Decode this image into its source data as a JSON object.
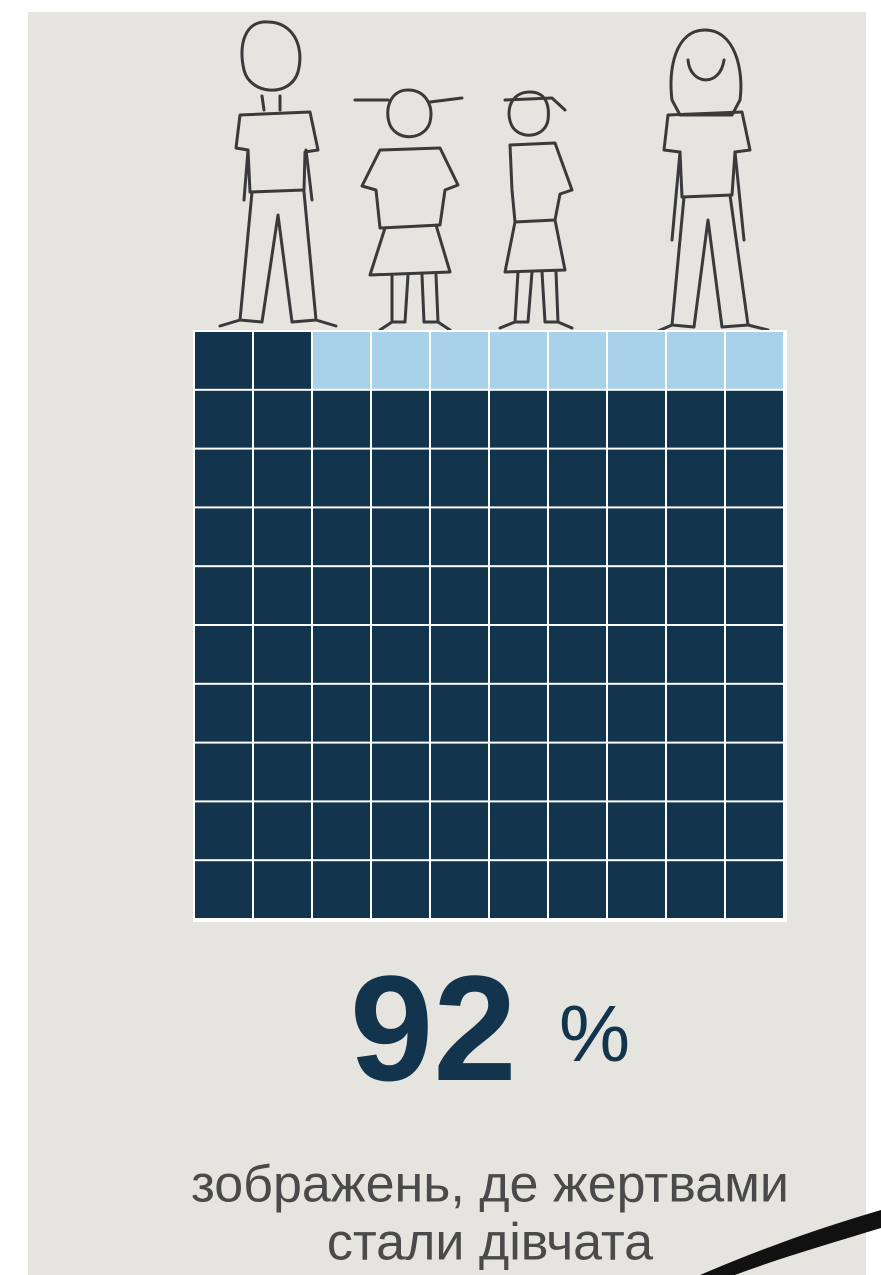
{
  "chart_data": {
    "type": "waffle",
    "values": [
      92
    ],
    "value_labels": [
      "92 %"
    ],
    "color": "#12344d",
    "rest_color": "#a8d1ea",
    "caption": [
      "зображень, де жертвами",
      "стали дівчата"
    ]
  }
}
